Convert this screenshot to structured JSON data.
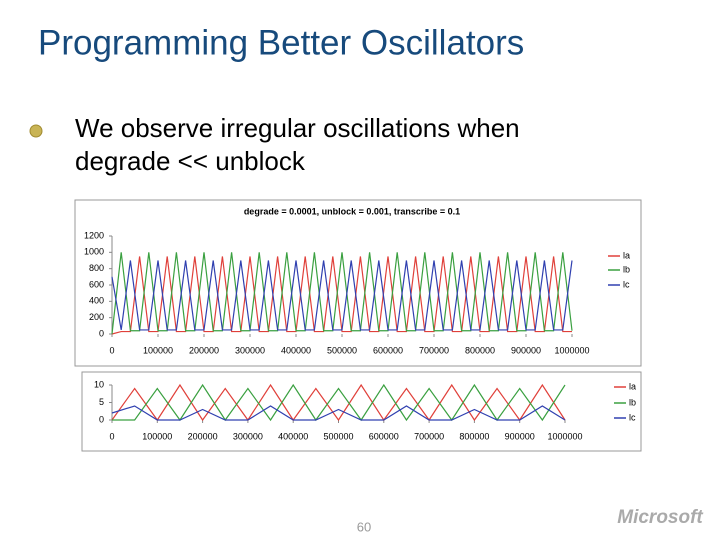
{
  "slide": {
    "title": "Programming Better Oscillators",
    "bullet": [
      "We observe irregular oscillations when",
      "degrade << unblock"
    ],
    "page_number": "60",
    "logo": "Microsoft"
  },
  "chart_data": [
    {
      "type": "line",
      "title": "degrade = 0.0001, unblock = 0.001, transcribe = 0.1",
      "x": [
        0,
        20000,
        40000,
        60000,
        80000,
        100000,
        120000,
        140000,
        160000,
        180000,
        200000,
        220000,
        240000,
        260000,
        280000,
        300000,
        320000,
        340000,
        360000,
        380000,
        400000,
        420000,
        440000,
        460000,
        480000,
        500000,
        520000,
        540000,
        560000,
        580000,
        600000,
        620000,
        640000,
        660000,
        680000,
        700000,
        720000,
        740000,
        760000,
        780000,
        800000,
        820000,
        840000,
        860000,
        880000,
        900000,
        920000,
        940000,
        960000,
        980000,
        1000000
      ],
      "series": [
        {
          "name": "la",
          "color": "#e0403a",
          "values": [
            0,
            30,
            30,
            950,
            30,
            30,
            950,
            30,
            30,
            950,
            30,
            30,
            950,
            30,
            30,
            950,
            30,
            30,
            950,
            30,
            30,
            950,
            30,
            30,
            950,
            30,
            30,
            950,
            30,
            30,
            950,
            30,
            30,
            950,
            30,
            30,
            950,
            30,
            30,
            950,
            30,
            30,
            950,
            30,
            30,
            950,
            30,
            30,
            950,
            30,
            30
          ]
        },
        {
          "name": "lb",
          "color": "#3aa040",
          "values": [
            0,
            1000,
            40,
            40,
            1000,
            40,
            40,
            1000,
            40,
            40,
            1000,
            40,
            40,
            1000,
            40,
            40,
            1000,
            40,
            40,
            1000,
            40,
            40,
            1000,
            40,
            40,
            1000,
            40,
            40,
            1000,
            40,
            40,
            1000,
            40,
            40,
            1000,
            40,
            40,
            1000,
            40,
            40,
            1000,
            40,
            40,
            1000,
            40,
            40,
            1000,
            40,
            40,
            1000,
            40
          ]
        },
        {
          "name": "lc",
          "color": "#3040b0",
          "values": [
            700,
            50,
            900,
            50,
            50,
            900,
            50,
            50,
            900,
            50,
            50,
            900,
            50,
            50,
            900,
            50,
            50,
            900,
            50,
            50,
            900,
            50,
            50,
            900,
            50,
            50,
            900,
            50,
            50,
            900,
            50,
            50,
            900,
            50,
            50,
            900,
            50,
            50,
            900,
            50,
            50,
            900,
            50,
            50,
            900,
            50,
            50,
            900,
            50,
            50,
            900
          ]
        }
      ],
      "xlim": [
        0,
        1000000
      ],
      "xticks": [
        0,
        100000,
        200000,
        300000,
        400000,
        500000,
        600000,
        700000,
        800000,
        900000,
        1000000
      ],
      "ylim": [
        0,
        1200
      ],
      "yticks": [
        0,
        200,
        400,
        600,
        800,
        1000,
        1200
      ]
    },
    {
      "type": "line",
      "x": [
        0,
        50000,
        100000,
        150000,
        200000,
        250000,
        300000,
        350000,
        400000,
        450000,
        500000,
        550000,
        600000,
        650000,
        700000,
        750000,
        800000,
        850000,
        900000,
        950000,
        1000000
      ],
      "series": [
        {
          "name": "la",
          "color": "#e0403a",
          "values": [
            0,
            9,
            0,
            10,
            0,
            9,
            0,
            10,
            0,
            9,
            0,
            10,
            0,
            9,
            0,
            10,
            0,
            9,
            0,
            10,
            0
          ]
        },
        {
          "name": "lb",
          "color": "#3aa040",
          "values": [
            0,
            0,
            9,
            0,
            10,
            0,
            9,
            0,
            10,
            0,
            9,
            0,
            10,
            0,
            9,
            0,
            10,
            0,
            9,
            0,
            10
          ]
        },
        {
          "name": "lc",
          "color": "#3040b0",
          "values": [
            2,
            4,
            0,
            0,
            3,
            0,
            0,
            4,
            0,
            0,
            3,
            0,
            0,
            4,
            0,
            0,
            3,
            0,
            0,
            4,
            0
          ]
        }
      ],
      "xlim": [
        0,
        1000000
      ],
      "xticks": [
        0,
        100000,
        200000,
        300000,
        400000,
        500000,
        600000,
        700000,
        800000,
        900000,
        1000000
      ],
      "ylim": [
        0,
        10
      ],
      "yticks": [
        0,
        5,
        10
      ]
    }
  ]
}
